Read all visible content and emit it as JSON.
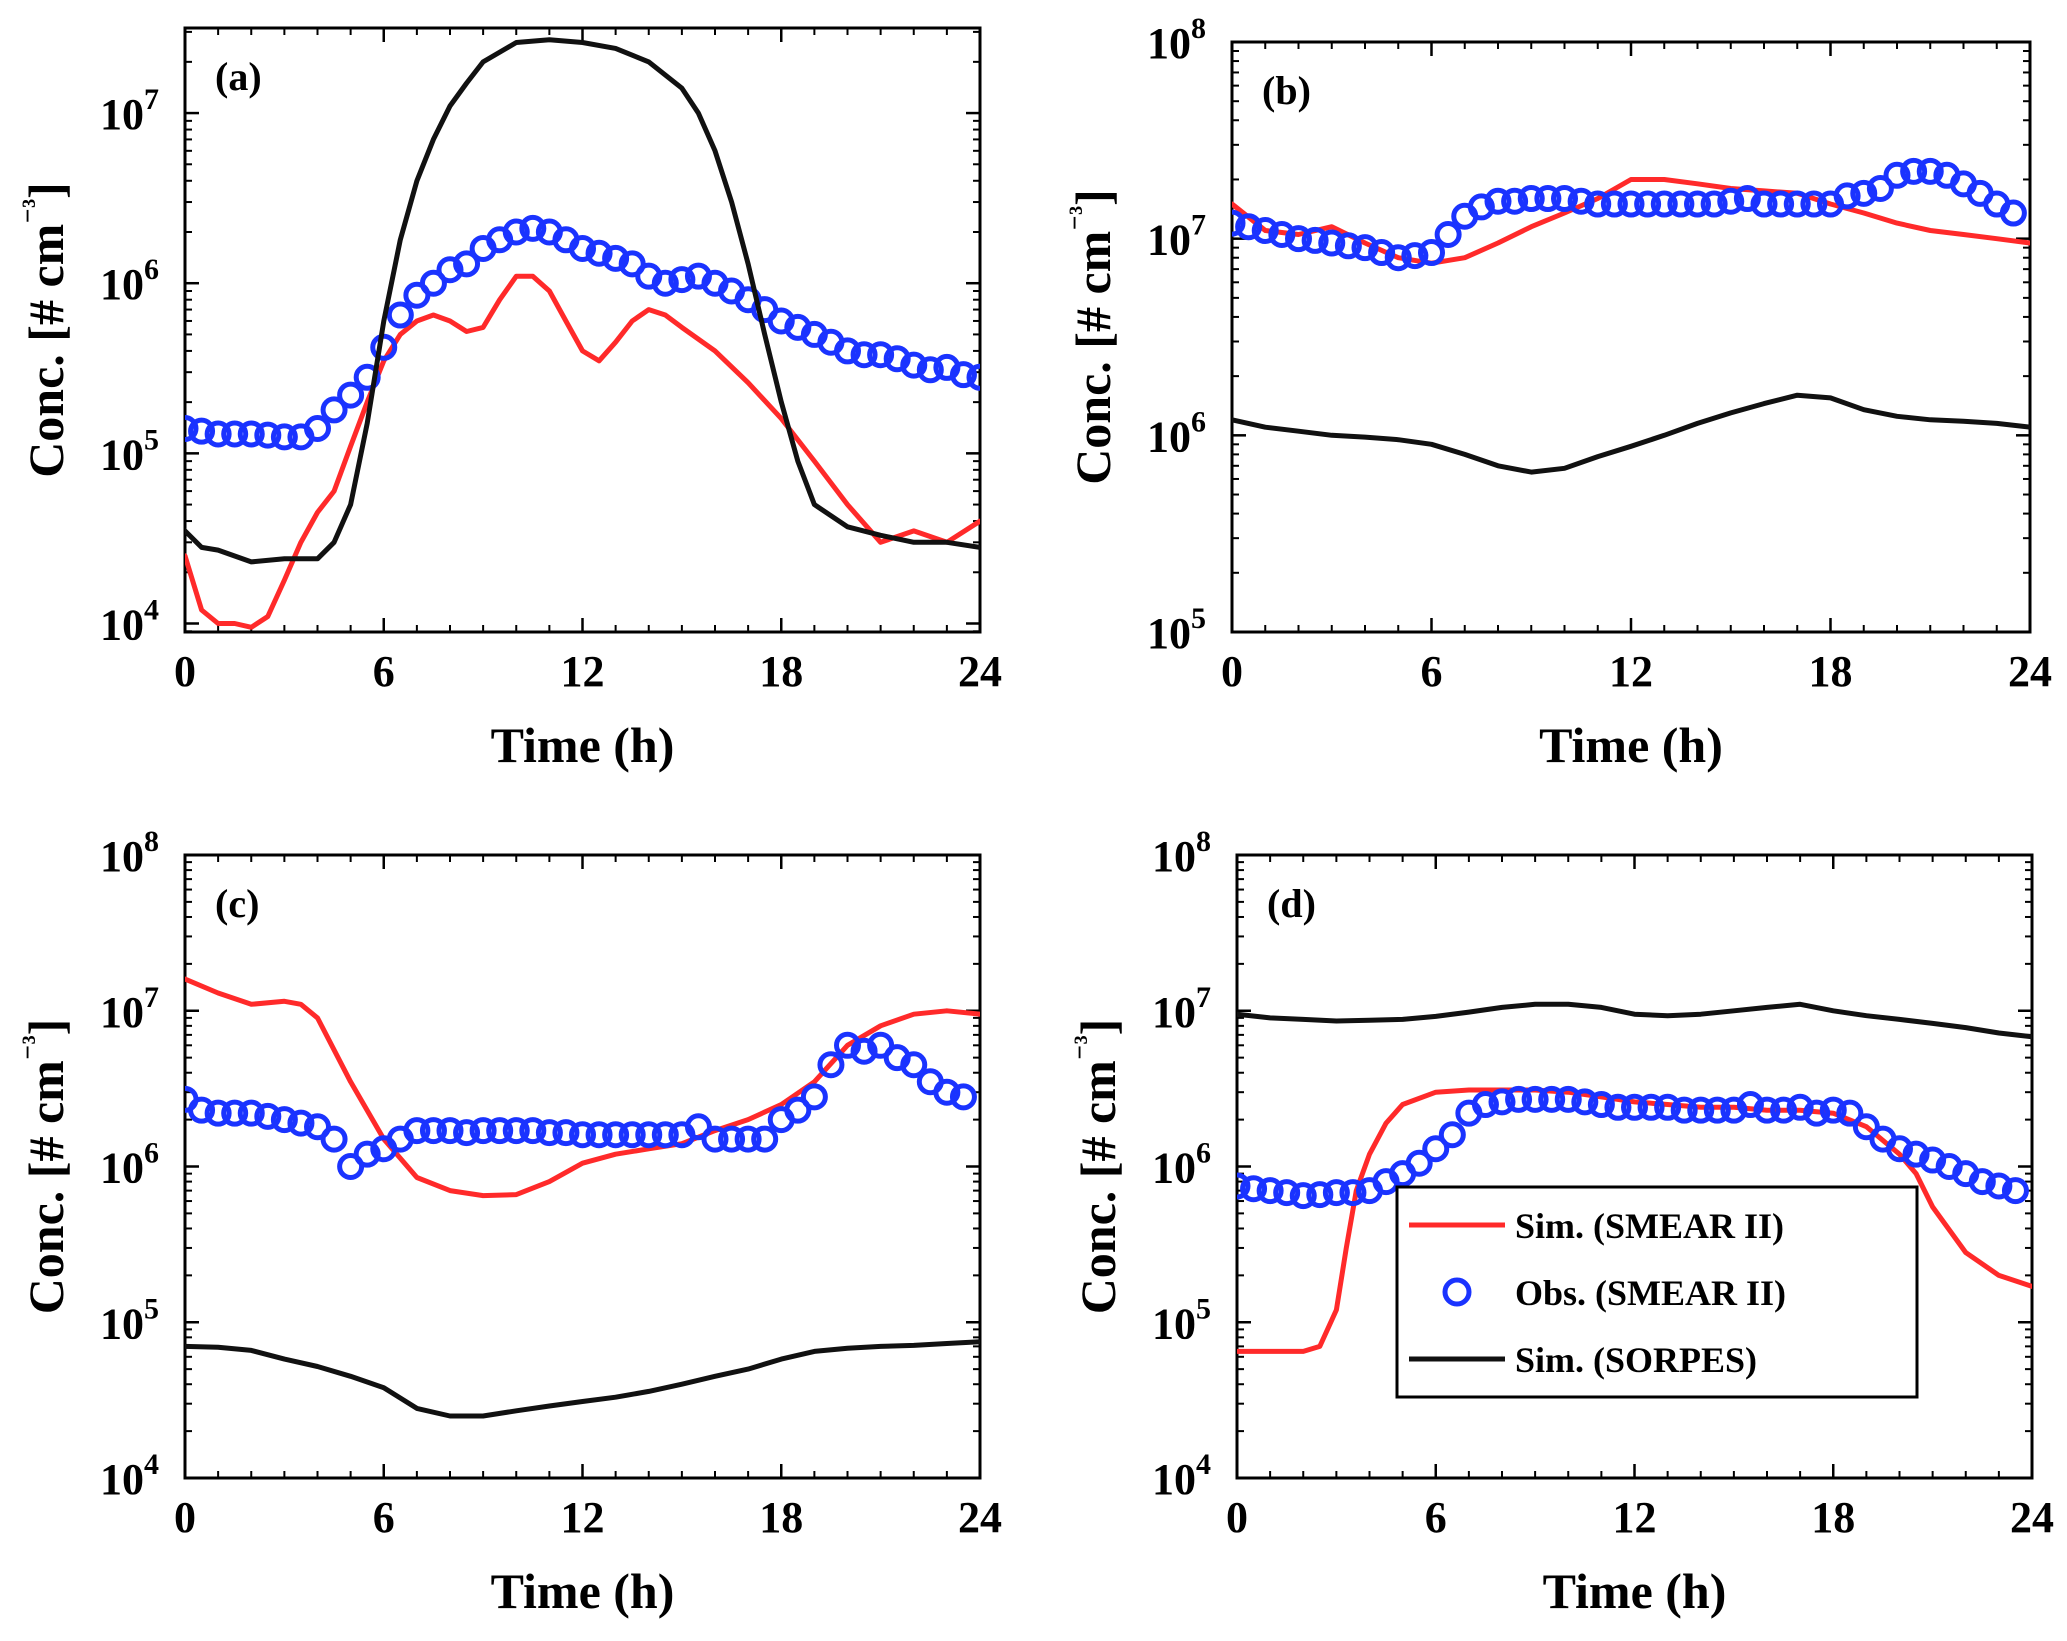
{
  "figure": {
    "legend": {
      "entries": [
        {
          "label": "Sim. (SMEAR II)",
          "color": "#ff2a2a",
          "marker": "line"
        },
        {
          "label": "Obs. (SMEAR II)",
          "color": "#1a33ff",
          "marker": "circle"
        },
        {
          "label": "Sim. (SORPES)",
          "color": "#111111",
          "marker": "line"
        }
      ],
      "location": "lower-right of panel (d)"
    }
  },
  "chart_data": [
    {
      "type": "line",
      "panel": "(a)",
      "xlabel": "Time (h)",
      "ylabel": "Conc. [# cm⁻³]",
      "yscale": "log",
      "xlim": [
        0,
        24
      ],
      "xticks": [
        0,
        6,
        12,
        18,
        24
      ],
      "ylim_log10": [
        3.95,
        7.5
      ],
      "yticks_log10": [
        4,
        5,
        6,
        7
      ],
      "series": [
        {
          "name": "Sim. (SMEAR II)",
          "color": "#ff2a2a",
          "x": [
            0,
            0.5,
            1,
            1.5,
            2,
            2.5,
            3,
            3.5,
            4,
            4.5,
            5,
            5.5,
            6,
            6.5,
            7,
            7.5,
            8,
            8.5,
            9,
            9.5,
            10,
            10.5,
            11,
            11.5,
            12,
            12.5,
            13,
            13.5,
            14,
            14.5,
            15,
            16,
            17,
            18,
            19,
            20,
            21,
            22,
            23,
            24
          ],
          "values": [
            25000,
            12000,
            10000,
            10000,
            9500,
            11000,
            18000,
            30000,
            45000,
            60000,
            110000,
            200000,
            350000,
            500000,
            600000,
            650000,
            600000,
            520000,
            550000,
            800000,
            1100000,
            1100000,
            900000,
            600000,
            400000,
            350000,
            450000,
            600000,
            700000,
            650000,
            550000,
            400000,
            260000,
            160000,
            90000,
            50000,
            30000,
            35000,
            30000,
            40000
          ]
        },
        {
          "name": "Obs. (SMEAR II)",
          "color": "#1a33ff",
          "x": [
            0,
            0.5,
            1,
            1.5,
            2,
            2.5,
            3,
            3.5,
            4,
            4.5,
            5,
            5.5,
            6,
            6.5,
            7,
            7.5,
            8,
            8.5,
            9,
            9.5,
            10,
            10.5,
            11,
            11.5,
            12,
            12.5,
            13,
            13.5,
            14,
            14.5,
            15,
            15.5,
            16,
            16.5,
            17,
            17.5,
            18,
            18.5,
            19,
            19.5,
            20,
            20.5,
            21,
            21.5,
            22,
            22.5,
            23,
            23.5,
            24
          ],
          "values": [
            140000,
            135000,
            130000,
            130000,
            130000,
            128000,
            125000,
            125000,
            140000,
            180000,
            220000,
            280000,
            420000,
            650000,
            850000,
            1000000,
            1200000,
            1300000,
            1600000,
            1800000,
            2000000,
            2100000,
            2000000,
            1800000,
            1600000,
            1500000,
            1400000,
            1300000,
            1100000,
            1000000,
            1050000,
            1100000,
            1000000,
            900000,
            800000,
            700000,
            600000,
            550000,
            500000,
            450000,
            400000,
            380000,
            380000,
            360000,
            330000,
            310000,
            320000,
            290000,
            280000
          ]
        },
        {
          "name": "Sim. (SORPES)",
          "color": "#111111",
          "x": [
            0,
            0.5,
            1,
            2,
            3,
            4,
            4.5,
            5,
            5.5,
            6,
            6.5,
            7,
            7.5,
            8,
            8.5,
            9,
            10,
            11,
            12,
            13,
            14,
            15,
            15.5,
            16,
            16.5,
            17,
            17.5,
            18,
            18.5,
            19,
            20,
            21,
            22,
            23,
            24
          ],
          "values": [
            35000,
            28000,
            27000,
            23000,
            24000,
            24000,
            30000,
            50000,
            150000,
            600000,
            1800000,
            4000000,
            7000000,
            11000000,
            15000000,
            20000000,
            26000000,
            27000000,
            26000000,
            24000000,
            20000000,
            14000000,
            10000000,
            6000000,
            3000000,
            1300000,
            500000,
            200000,
            90000,
            50000,
            37000,
            33000,
            30000,
            30000,
            28000
          ]
        }
      ]
    },
    {
      "type": "line",
      "panel": "(b)",
      "xlabel": "Time (h)",
      "ylabel": "Conc. [# cm⁻³]",
      "yscale": "log",
      "xlim": [
        0,
        24
      ],
      "xticks": [
        0,
        6,
        12,
        18,
        24
      ],
      "ylim_log10": [
        5,
        8
      ],
      "yticks_log10": [
        5,
        6,
        7,
        8
      ],
      "series": [
        {
          "name": "Sim. (SMEAR II)",
          "color": "#ff2a2a",
          "x": [
            0,
            1,
            2,
            3,
            4,
            5,
            6,
            7,
            8,
            9,
            10,
            11,
            12,
            13,
            14,
            15,
            16,
            17,
            18,
            19,
            20,
            21,
            22,
            23,
            24
          ],
          "values": [
            15000000,
            11000000,
            10500000,
            11500000,
            9500000,
            8000000,
            7500000,
            8000000,
            9500000,
            11500000,
            13500000,
            16000000,
            20000000,
            20000000,
            19000000,
            18000000,
            17500000,
            17000000,
            15000000,
            13500000,
            12000000,
            11000000,
            10500000,
            10000000,
            9500000
          ]
        },
        {
          "name": "Obs. (SMEAR II)",
          "color": "#1a33ff",
          "x": [
            0,
            0.5,
            1,
            1.5,
            2,
            2.5,
            3,
            3.5,
            4,
            4.5,
            5,
            5.5,
            6,
            6.5,
            7,
            7.5,
            8,
            8.5,
            9,
            9.5,
            10,
            10.5,
            11,
            11.5,
            12,
            12.5,
            13,
            13.5,
            14,
            14.5,
            15,
            15.5,
            16,
            16.5,
            17,
            17.5,
            18,
            18.5,
            19,
            19.5,
            20,
            20.5,
            21,
            21.5,
            22,
            22.5,
            23,
            23.5
          ],
          "values": [
            12000000,
            11500000,
            11000000,
            10500000,
            10000000,
            9800000,
            9500000,
            9200000,
            9000000,
            8500000,
            8000000,
            8200000,
            8500000,
            10500000,
            13000000,
            14500000,
            15500000,
            15500000,
            16000000,
            16000000,
            16000000,
            15500000,
            15000000,
            15000000,
            15000000,
            15000000,
            15000000,
            15000000,
            15000000,
            15000000,
            15500000,
            16000000,
            15000000,
            15000000,
            15000000,
            15000000,
            15000000,
            16500000,
            17000000,
            18000000,
            21000000,
            22000000,
            22000000,
            21000000,
            19000000,
            17000000,
            15000000,
            13500000
          ]
        },
        {
          "name": "Sim. (SORPES)",
          "color": "#111111",
          "x": [
            0,
            1,
            2,
            3,
            4,
            5,
            6,
            7,
            8,
            9,
            10,
            11,
            12,
            13,
            14,
            15,
            16,
            17,
            18,
            19,
            20,
            21,
            22,
            23,
            24
          ],
          "values": [
            1200000,
            1100000,
            1050000,
            1000000,
            980000,
            950000,
            900000,
            800000,
            700000,
            650000,
            680000,
            780000,
            880000,
            1000000,
            1150000,
            1300000,
            1450000,
            1600000,
            1550000,
            1350000,
            1250000,
            1200000,
            1180000,
            1150000,
            1100000
          ]
        }
      ]
    },
    {
      "type": "line",
      "panel": "(c)",
      "xlabel": "Time (h)",
      "ylabel": "Conc. [# cm⁻³]",
      "yscale": "log",
      "xlim": [
        0,
        24
      ],
      "xticks": [
        0,
        6,
        12,
        18,
        24
      ],
      "ylim_log10": [
        4,
        8
      ],
      "yticks_log10": [
        4,
        5,
        6,
        7,
        8
      ],
      "series": [
        {
          "name": "Sim. (SMEAR II)",
          "color": "#ff2a2a",
          "x": [
            0,
            1,
            2,
            3,
            3.5,
            4,
            5,
            6,
            7,
            8,
            9,
            10,
            11,
            12,
            13,
            14,
            15,
            16,
            17,
            18,
            19,
            20,
            21,
            22,
            23,
            24
          ],
          "values": [
            16000000,
            13000000,
            11000000,
            11500000,
            11000000,
            9000000,
            3500000,
            1500000,
            850000,
            700000,
            650000,
            660000,
            800000,
            1050000,
            1200000,
            1300000,
            1400000,
            1700000,
            2000000,
            2500000,
            3500000,
            6000000,
            8000000,
            9500000,
            10000000,
            9500000
          ]
        },
        {
          "name": "Obs. (SMEAR II)",
          "color": "#1a33ff",
          "x": [
            0,
            0.5,
            1,
            1.5,
            2,
            2.5,
            3,
            3.5,
            4,
            4.5,
            5,
            5.5,
            6,
            6.5,
            7,
            7.5,
            8,
            8.5,
            9,
            9.5,
            10,
            10.5,
            11,
            11.5,
            12,
            12.5,
            13,
            13.5,
            14,
            14.5,
            15,
            15.5,
            16,
            16.5,
            17,
            17.5,
            18,
            18.5,
            19,
            19.5,
            20,
            20.5,
            21,
            21.5,
            22,
            22.5,
            23,
            23.5
          ],
          "values": [
            2700000,
            2300000,
            2200000,
            2200000,
            2200000,
            2100000,
            2000000,
            1900000,
            1800000,
            1500000,
            1000000,
            1200000,
            1300000,
            1500000,
            1700000,
            1700000,
            1700000,
            1650000,
            1700000,
            1700000,
            1700000,
            1700000,
            1650000,
            1650000,
            1600000,
            1600000,
            1600000,
            1600000,
            1600000,
            1600000,
            1600000,
            1800000,
            1500000,
            1500000,
            1500000,
            1500000,
            2000000,
            2300000,
            2800000,
            4500000,
            6000000,
            5500000,
            6000000,
            5000000,
            4500000,
            3500000,
            3000000,
            2800000
          ]
        },
        {
          "name": "Sim. (SORPES)",
          "color": "#111111",
          "x": [
            0,
            1,
            2,
            3,
            4,
            5,
            6,
            7,
            8,
            9,
            10,
            11,
            12,
            13,
            14,
            15,
            16,
            17,
            18,
            19,
            20,
            21,
            22,
            23,
            24
          ],
          "values": [
            70000,
            69000,
            66000,
            58000,
            52000,
            45000,
            38000,
            28000,
            25000,
            25000,
            27000,
            29000,
            31000,
            33000,
            36000,
            40000,
            45000,
            50000,
            58000,
            65000,
            68000,
            70000,
            71000,
            73000,
            75000
          ]
        }
      ]
    },
    {
      "type": "line",
      "panel": "(d)",
      "xlabel": "Time (h)",
      "ylabel": "Conc. [# cm⁻³]",
      "yscale": "log",
      "xlim": [
        0,
        24
      ],
      "xticks": [
        0,
        6,
        12,
        18,
        24
      ],
      "ylim_log10": [
        4,
        8
      ],
      "yticks_log10": [
        4,
        5,
        6,
        7,
        8
      ],
      "series": [
        {
          "name": "Sim. (SMEAR II)",
          "color": "#ff2a2a",
          "x": [
            0,
            1,
            2,
            2.5,
            3,
            3.3,
            3.6,
            4,
            4.5,
            5,
            6,
            7,
            8,
            9,
            10,
            11,
            12,
            13,
            14,
            15,
            16,
            17,
            18,
            19,
            20,
            20.5,
            21,
            22,
            23,
            24
          ],
          "values": [
            65000,
            65000,
            65000,
            70000,
            120000,
            300000,
            700000,
            1200000,
            1900000,
            2500000,
            3000000,
            3100000,
            3100000,
            3100000,
            3000000,
            2800000,
            2600000,
            2500000,
            2400000,
            2400000,
            2300000,
            2300000,
            2200000,
            1800000,
            1200000,
            900000,
            550000,
            280000,
            200000,
            170000
          ]
        },
        {
          "name": "Obs. (SMEAR II)",
          "color": "#1a33ff",
          "x": [
            0,
            0.5,
            1,
            1.5,
            2,
            2.5,
            3,
            3.5,
            4,
            4.5,
            5,
            5.5,
            6,
            6.5,
            7,
            7.5,
            8,
            8.5,
            9,
            9.5,
            10,
            10.5,
            11,
            11.5,
            12,
            12.5,
            13,
            13.5,
            14,
            14.5,
            15,
            15.5,
            16,
            16.5,
            17,
            17.5,
            18,
            18.5,
            19,
            19.5,
            20,
            20.5,
            21,
            21.5,
            22,
            22.5,
            23,
            23.5
          ],
          "values": [
            750000,
            720000,
            700000,
            680000,
            650000,
            660000,
            680000,
            680000,
            700000,
            800000,
            900000,
            1050000,
            1300000,
            1600000,
            2200000,
            2500000,
            2600000,
            2700000,
            2700000,
            2700000,
            2700000,
            2600000,
            2500000,
            2400000,
            2400000,
            2400000,
            2400000,
            2300000,
            2300000,
            2300000,
            2300000,
            2500000,
            2300000,
            2300000,
            2400000,
            2200000,
            2300000,
            2200000,
            1800000,
            1500000,
            1300000,
            1200000,
            1100000,
            1000000,
            900000,
            800000,
            750000,
            700000
          ]
        },
        {
          "name": "Sim. (SORPES)",
          "color": "#111111",
          "x": [
            0,
            1,
            2,
            3,
            4,
            5,
            6,
            7,
            8,
            9,
            10,
            11,
            12,
            13,
            14,
            15,
            16,
            17,
            18,
            19,
            20,
            21,
            22,
            23,
            24
          ],
          "values": [
            9500000,
            9000000,
            8800000,
            8600000,
            8700000,
            8800000,
            9200000,
            9800000,
            10500000,
            11000000,
            11000000,
            10500000,
            9500000,
            9300000,
            9500000,
            10000000,
            10500000,
            11000000,
            10000000,
            9300000,
            8800000,
            8300000,
            7800000,
            7200000,
            6800000
          ]
        }
      ]
    }
  ]
}
